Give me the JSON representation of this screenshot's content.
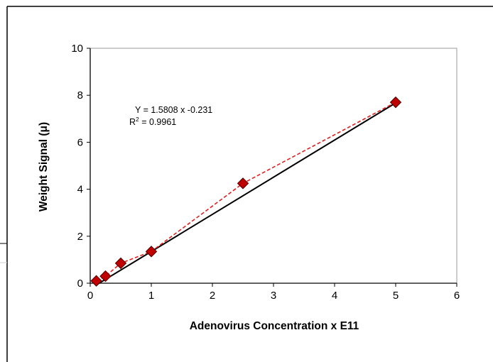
{
  "chart_data": {
    "type": "scatter",
    "title": "",
    "xlabel": "Adenovirus Concentration x E11",
    "ylabel": "Weight Signal (μ)",
    "xlim": [
      0,
      6
    ],
    "ylim": [
      0,
      10
    ],
    "x_ticks": [
      "0",
      "1",
      "2",
      "3",
      "4",
      "5",
      "6"
    ],
    "y_ticks": [
      "0",
      "2",
      "4",
      "6",
      "8",
      "10"
    ],
    "grid": false,
    "legend": "none",
    "series": [
      {
        "x": [
          0.1,
          0.25,
          0.5,
          1.0,
          2.5,
          5.0
        ],
        "values": [
          0.1,
          0.3,
          0.85,
          1.35,
          4.25,
          7.7
        ],
        "marker": "diamond",
        "marker_color": "#c00000",
        "connector": "dashed",
        "connector_color": "#e02020"
      }
    ],
    "trendline": {
      "type": "linear",
      "slope": 1.5808,
      "intercept": -0.231,
      "x_range": [
        0.1,
        5.0
      ],
      "color": "#000000"
    },
    "annotation": {
      "equation": "Y = 1.5808 x -0.231",
      "r2_label_R": "R",
      "r2_label_sup": "2",
      "r2_value": " = 0.9961"
    }
  }
}
